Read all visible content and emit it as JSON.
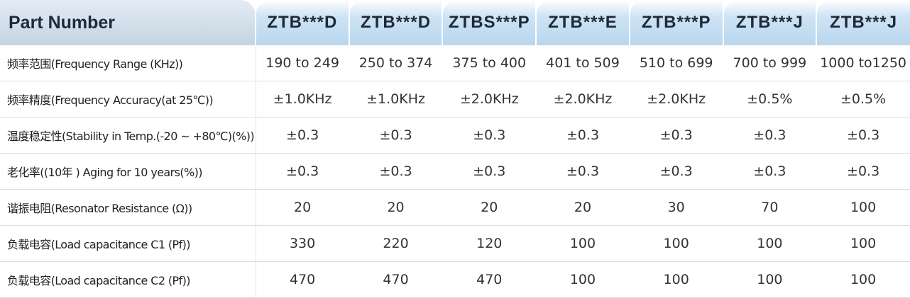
{
  "table": {
    "header": [
      "Part Number",
      "ZTB***D",
      "ZTB***D",
      "ZTBS***P",
      "ZTB***E",
      "ZTB***P",
      "ZTB***J",
      "ZTB***J"
    ],
    "rows": [
      [
        "频率范围(Frequency Range (KHz))",
        "190 to 249",
        "250 to 374",
        "375 to 400",
        "401 to 509",
        "510 to 699",
        "700 to 999",
        "1000 to1250"
      ],
      [
        "频率精度(Frequency Accuracy(at 25℃))",
        "±1.0KHz",
        "±1.0KHz",
        "±2.0KHz",
        "±2.0KHz",
        "±2.0KHz",
        "±0.5%",
        "±0.5%"
      ],
      [
        "温度稳定性(Stability in Temp.(-20 ~ +80℃)(%))",
        "±0.3",
        "±0.3",
        "±0.3",
        "±0.3",
        "±0.3",
        "±0.3",
        "±0.3"
      ],
      [
        "老化率((10年 ) Aging for 10 years(%))",
        "±0.3",
        "±0.3",
        "±0.3",
        "±0.3",
        "±0.3",
        "±0.3",
        "±0.3"
      ],
      [
        "谐振电阻(Resonator Resistance (Ω))",
        "20",
        "20",
        "20",
        "20",
        "30",
        "70",
        "100"
      ],
      [
        "负载电容(Load capacitance C1 (Pf))",
        "330",
        "220",
        "120",
        "100",
        "100",
        "100",
        "100"
      ],
      [
        "负载电容(Load capacitance C2 (Pf))",
        "470",
        "470",
        "470",
        "100",
        "100",
        "100",
        "100"
      ]
    ]
  }
}
